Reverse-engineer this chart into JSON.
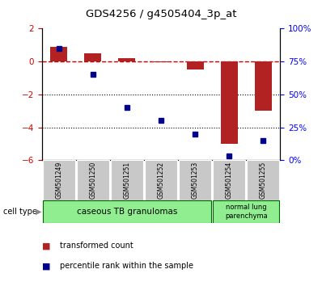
{
  "title": "GDS4256 / g4505404_3p_at",
  "samples": [
    "GSM501249",
    "GSM501250",
    "GSM501251",
    "GSM501252",
    "GSM501253",
    "GSM501254",
    "GSM501255"
  ],
  "transformed_count": [
    0.9,
    0.5,
    0.2,
    -0.05,
    -0.5,
    -5.0,
    -3.0
  ],
  "percentile_rank": [
    85,
    65,
    40,
    30,
    20,
    3,
    15
  ],
  "ylim_left": [
    -6,
    2
  ],
  "yticks_left": [
    -6,
    -4,
    -2,
    0,
    2
  ],
  "ylim_right": [
    0,
    100
  ],
  "yticks_right": [
    0,
    25,
    50,
    75,
    100
  ],
  "ytick_labels_right": [
    "0%",
    "25%",
    "50%",
    "75%",
    "100%"
  ],
  "bar_color": "#b22222",
  "scatter_color": "#00008b",
  "dashed_line_color": "#cc0000",
  "dotted_line_color": "#000000",
  "group1_label": "caseous TB granulomas",
  "group2_label": "normal lung\nparenchyma",
  "group1_indices": [
    0,
    1,
    2,
    3,
    4
  ],
  "group2_indices": [
    5,
    6
  ],
  "group_bg_color": "#90ee90",
  "tick_bg_color": "#c8c8c8",
  "legend_tc": "transformed count",
  "legend_pr": "percentile rank within the sample",
  "cell_type_label": "cell type"
}
